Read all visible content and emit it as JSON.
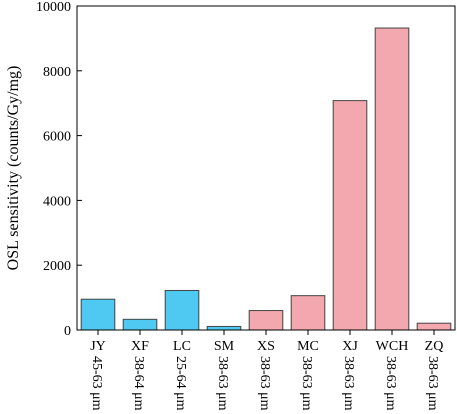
{
  "chart_data": {
    "type": "bar",
    "title": "",
    "xlabel": "",
    "ylabel": "OSL sensitivity (counts/Gy/mg)",
    "ylim": [
      0,
      10000
    ],
    "yticks": [
      0,
      2000,
      4000,
      6000,
      8000,
      10000
    ],
    "grid": false,
    "legend": "none",
    "categories": [
      {
        "name": "JY",
        "range": "45-63 μm"
      },
      {
        "name": "XF",
        "range": "38-64 μm"
      },
      {
        "name": "LC",
        "range": "25-64 μm"
      },
      {
        "name": "SM",
        "range": "38-63 μm"
      },
      {
        "name": "XS",
        "range": "38-63 μm"
      },
      {
        "name": "MC",
        "range": "38-63 μm"
      },
      {
        "name": "XJ",
        "range": "38-63 μm"
      },
      {
        "name": "WCH",
        "range": "38-63 μm"
      },
      {
        "name": "ZQ",
        "range": "38-63 μm"
      }
    ],
    "values": [
      950,
      330,
      1220,
      110,
      600,
      1060,
      7080,
      9320,
      210
    ],
    "bar_colors": [
      "#4fc9f1",
      "#4fc9f1",
      "#4fc9f1",
      "#4fc9f1",
      "#f2a8ae",
      "#f2a8ae",
      "#f2a8ae",
      "#f2a8ae",
      "#f2a8ae"
    ],
    "bar_stroke": "#444444"
  }
}
